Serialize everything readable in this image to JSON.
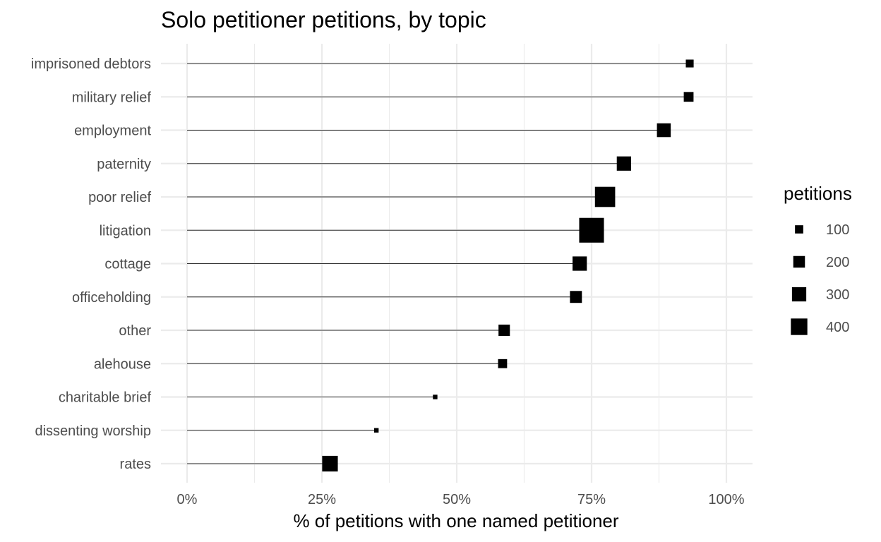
{
  "chart_data": {
    "type": "scatter",
    "variant": "lollipop",
    "title": "Solo petitioner petitions, by topic",
    "xlabel": "% of petitions with one named petitioner",
    "ylabel": "",
    "xlim": [
      0,
      1
    ],
    "x_ticks": [
      0,
      0.25,
      0.5,
      0.75,
      1
    ],
    "x_tick_labels": [
      "0%",
      "25%",
      "50%",
      "75%",
      "100%"
    ],
    "grid": true,
    "point_shape": "square",
    "point_color": "#000000",
    "categories": [
      "imprisoned debtors",
      "military relief",
      "employment",
      "paternity",
      "poor relief",
      "litigation",
      "cottage",
      "officeholding",
      "other",
      "alehouse",
      "charitable brief",
      "dissenting worship",
      "rates"
    ],
    "values": [
      0.932,
      0.93,
      0.884,
      0.81,
      0.775,
      0.75,
      0.728,
      0.721,
      0.588,
      0.585,
      0.46,
      0.351,
      0.265
    ],
    "sizes": [
      90,
      140,
      280,
      300,
      600,
      900,
      300,
      210,
      190,
      120,
      30,
      30,
      360
    ],
    "legend": {
      "title": "petitions",
      "position": "right",
      "breaks": [
        100,
        200,
        300,
        400
      ],
      "labels": [
        "100",
        "200",
        "300",
        "400"
      ]
    }
  }
}
